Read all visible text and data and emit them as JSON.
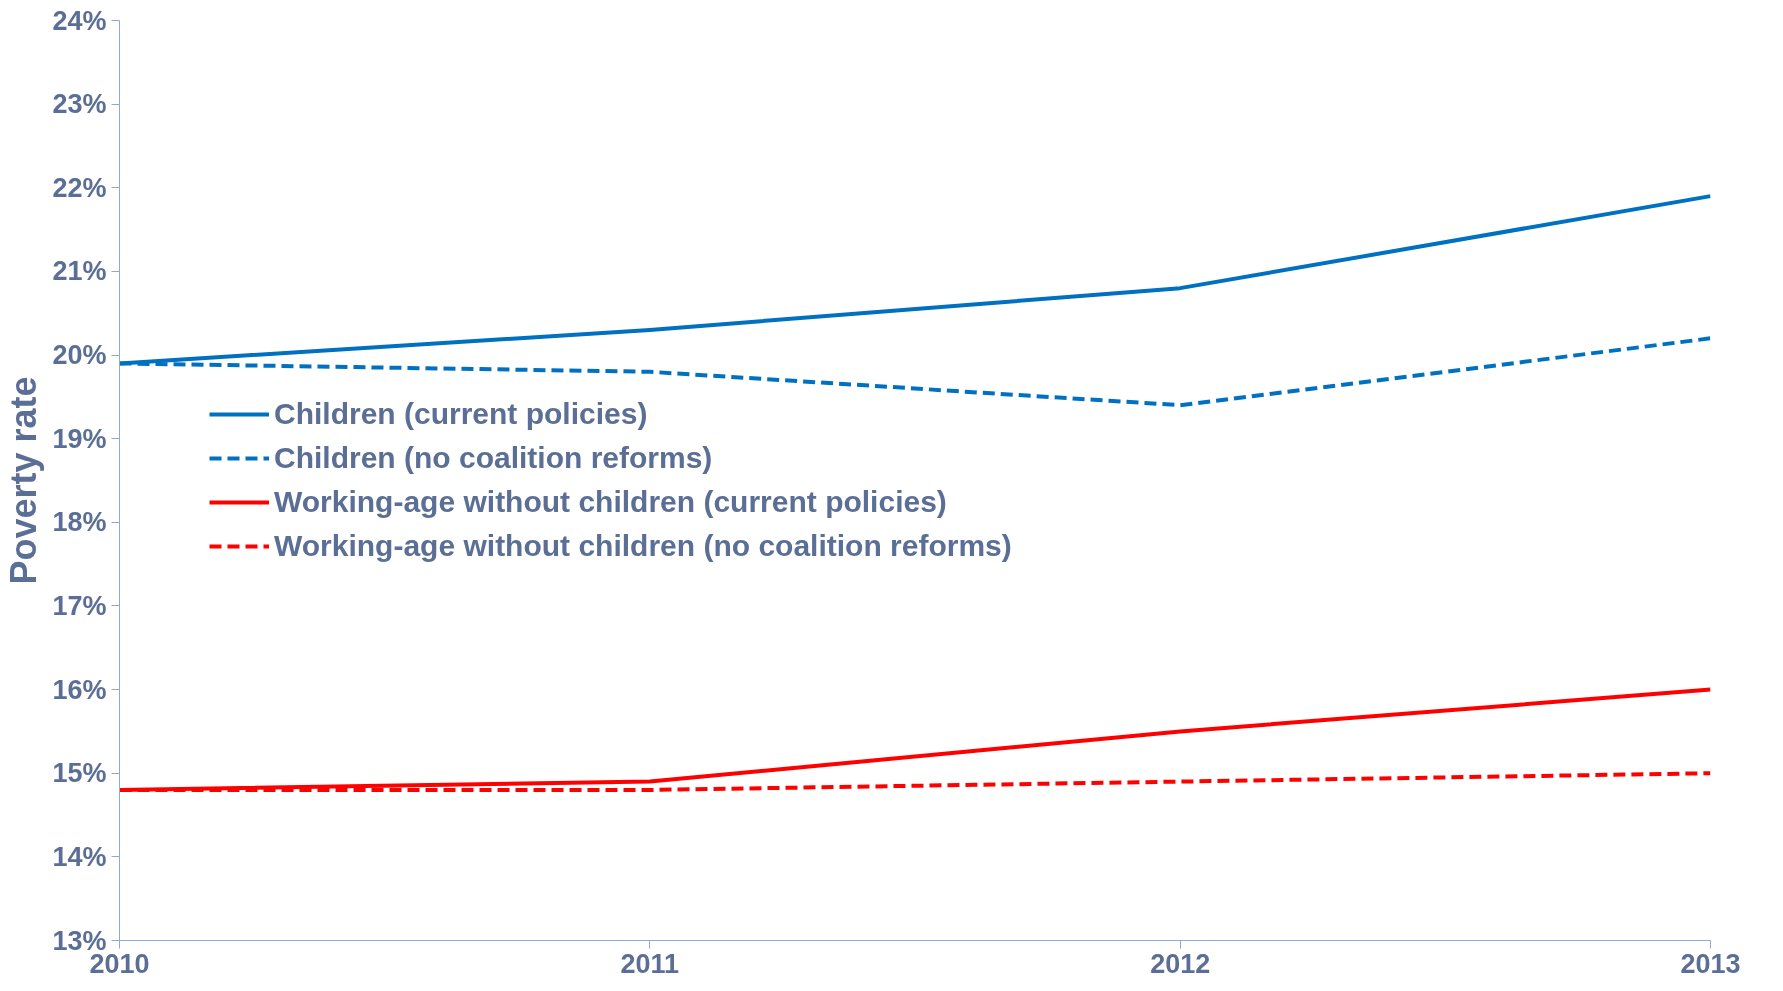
{
  "chart_data": {
    "type": "line",
    "ylabel": "Poverty rate",
    "x": [
      2010,
      2011,
      2012,
      2013
    ],
    "series": [
      {
        "name": "Children (current policies)",
        "color": "#0070c0",
        "line_style": "solid",
        "values": [
          19.9,
          20.3,
          20.8,
          21.9
        ]
      },
      {
        "name": "Children (no coalition reforms)",
        "color": "#0070c0",
        "line_style": "dashed",
        "values": [
          19.9,
          19.8,
          19.4,
          20.2
        ]
      },
      {
        "name": "Working-age without children (current policies)",
        "color": "#ff0000",
        "line_style": "solid",
        "values": [
          14.8,
          14.9,
          15.5,
          16.0
        ]
      },
      {
        "name": "Working-age without children (no coalition reforms)",
        "color": "#ff0000",
        "line_style": "dashed",
        "values": [
          14.8,
          14.8,
          14.9,
          15.0
        ]
      }
    ],
    "xlim": [
      2010,
      2013
    ],
    "xticks": [
      2010,
      2011,
      2012,
      2013
    ],
    "ylim": [
      13,
      24
    ],
    "yticks": [
      {
        "value": 13,
        "label": "13%"
      },
      {
        "value": 14,
        "label": "14%"
      },
      {
        "value": 15,
        "label": "15%"
      },
      {
        "value": 16,
        "label": "16%"
      },
      {
        "value": 17,
        "label": "17%"
      },
      {
        "value": 18,
        "label": "18%"
      },
      {
        "value": 19,
        "label": "19%"
      },
      {
        "value": 20,
        "label": "20%"
      },
      {
        "value": 21,
        "label": "21%"
      },
      {
        "value": 22,
        "label": "22%"
      },
      {
        "value": 23,
        "label": "23%"
      },
      {
        "value": 24,
        "label": "24%"
      }
    ],
    "grid": false,
    "legend": "left",
    "marker": "none"
  }
}
